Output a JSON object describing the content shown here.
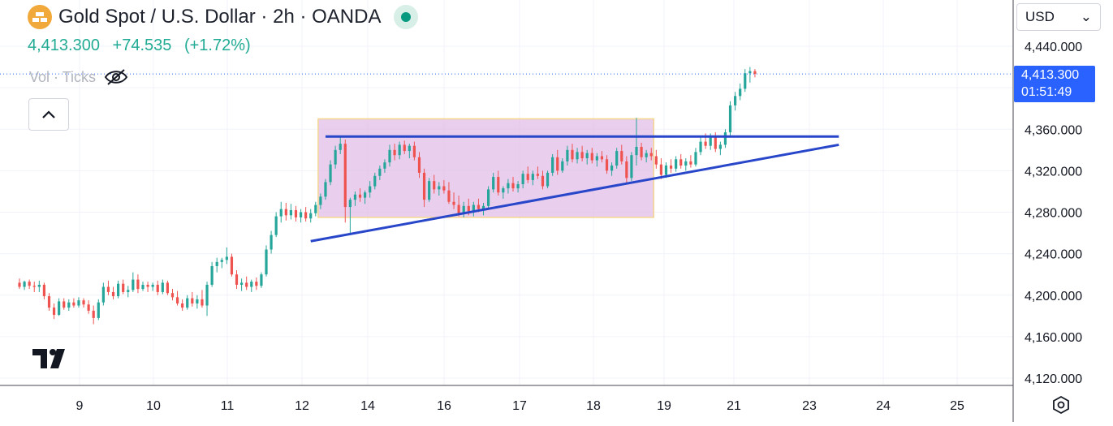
{
  "header": {
    "title": "Gold Spot / U.S. Dollar · 2h · OANDA",
    "last_price": "4,413.300",
    "change": "+74.535",
    "change_pct": "(+1.72%)",
    "volume_label": "Vol · Ticks"
  },
  "toolbar": {
    "currency": "USD",
    "currency_chevron": "⌄"
  },
  "price_label": {
    "price": "4,413.300",
    "countdown": "01:51:49"
  },
  "icons": {
    "symbol": "gold-bars-icon",
    "status": "market-open-dot-icon",
    "visibility": "eye-off-icon",
    "collapse": "chevron-up-icon",
    "logo": "tradingview-logo-icon",
    "settings": "settings-icon"
  },
  "colors": {
    "up": "#26a69a",
    "down": "#ef5350",
    "rectangle_fill": "#e1bee7",
    "trendline": "#2846c9",
    "price_line": "#2962ff"
  },
  "chart_data": {
    "type": "candlestick",
    "x_ticks": [
      "9",
      "10",
      "11",
      "12",
      "14",
      "16",
      "17",
      "18",
      "19",
      "21",
      "23",
      "24",
      "25"
    ],
    "y_ticks": [
      4440,
      4400,
      4360,
      4320,
      4280,
      4240,
      4200,
      4160,
      4120
    ],
    "y_tick_labels": [
      "4,440.000",
      "",
      "4,360.000",
      "4,320.000",
      "4,280.000",
      "4,240.000",
      "4,200.000",
      "4,160.000",
      "4,120.000"
    ],
    "ylim": [
      4113,
      4456
    ],
    "last_price": 4413.3,
    "candles": [
      [
        4212,
        4216,
        4206,
        4208
      ],
      [
        4208,
        4214,
        4205,
        4213
      ],
      [
        4213,
        4215,
        4206,
        4209
      ],
      [
        4209,
        4213,
        4203,
        4208
      ],
      [
        4208,
        4214,
        4203,
        4210
      ],
      [
        4210,
        4212,
        4196,
        4199
      ],
      [
        4199,
        4202,
        4185,
        4188
      ],
      [
        4188,
        4192,
        4177,
        4181
      ],
      [
        4181,
        4197,
        4180,
        4194
      ],
      [
        4194,
        4197,
        4186,
        4188
      ],
      [
        4188,
        4196,
        4185,
        4193
      ],
      [
        4193,
        4197,
        4188,
        4190
      ],
      [
        4190,
        4198,
        4188,
        4195
      ],
      [
        4195,
        4197,
        4188,
        4191
      ],
      [
        4191,
        4195,
        4182,
        4185
      ],
      [
        4185,
        4190,
        4172,
        4178
      ],
      [
        4178,
        4196,
        4176,
        4193
      ],
      [
        4193,
        4212,
        4190,
        4208
      ],
      [
        4208,
        4214,
        4200,
        4203
      ],
      [
        4203,
        4208,
        4196,
        4199
      ],
      [
        4199,
        4214,
        4197,
        4211
      ],
      [
        4211,
        4215,
        4201,
        4203
      ],
      [
        4203,
        4209,
        4198,
        4205
      ],
      [
        4205,
        4222,
        4203,
        4215
      ],
      [
        4215,
        4220,
        4202,
        4206
      ],
      [
        4206,
        4213,
        4204,
        4210
      ],
      [
        4210,
        4213,
        4203,
        4208
      ],
      [
        4208,
        4212,
        4204,
        4210
      ],
      [
        4210,
        4214,
        4200,
        4203
      ],
      [
        4203,
        4215,
        4201,
        4212
      ],
      [
        4212,
        4214,
        4200,
        4202
      ],
      [
        4202,
        4206,
        4195,
        4198
      ],
      [
        4198,
        4204,
        4190,
        4192
      ],
      [
        4192,
        4196,
        4185,
        4188
      ],
      [
        4188,
        4200,
        4186,
        4197
      ],
      [
        4197,
        4203,
        4189,
        4192
      ],
      [
        4192,
        4200,
        4187,
        4196
      ],
      [
        4196,
        4205,
        4188,
        4190
      ],
      [
        4190,
        4213,
        4180,
        4210
      ],
      [
        4210,
        4232,
        4208,
        4228
      ],
      [
        4228,
        4236,
        4222,
        4232
      ],
      [
        4232,
        4236,
        4226,
        4234
      ],
      [
        4234,
        4246,
        4230,
        4237
      ],
      [
        4237,
        4240,
        4218,
        4220
      ],
      [
        4220,
        4224,
        4206,
        4210
      ],
      [
        4210,
        4216,
        4204,
        4212
      ],
      [
        4212,
        4218,
        4205,
        4208
      ],
      [
        4208,
        4215,
        4203,
        4213
      ],
      [
        4213,
        4217,
        4205,
        4209
      ],
      [
        4209,
        4222,
        4207,
        4220
      ],
      [
        4220,
        4248,
        4218,
        4244
      ],
      [
        4244,
        4262,
        4240,
        4258
      ],
      [
        4258,
        4280,
        4256,
        4276
      ],
      [
        4276,
        4290,
        4270,
        4283
      ],
      [
        4283,
        4289,
        4272,
        4277
      ],
      [
        4277,
        4288,
        4273,
        4282
      ],
      [
        4282,
        4286,
        4271,
        4275
      ],
      [
        4275,
        4283,
        4270,
        4280
      ],
      [
        4280,
        4285,
        4271,
        4274
      ],
      [
        4274,
        4283,
        4270,
        4279
      ],
      [
        4279,
        4290,
        4276,
        4287
      ],
      [
        4287,
        4298,
        4283,
        4295
      ],
      [
        4295,
        4312,
        4292,
        4309
      ],
      [
        4309,
        4330,
        4306,
        4326
      ],
      [
        4326,
        4344,
        4322,
        4340
      ],
      [
        4340,
        4352,
        4336,
        4346
      ],
      [
        4346,
        4350,
        4270,
        4285
      ],
      [
        4285,
        4294,
        4260,
        4292
      ],
      [
        4292,
        4300,
        4286,
        4297
      ],
      [
        4297,
        4303,
        4290,
        4294
      ],
      [
        4294,
        4301,
        4288,
        4299
      ],
      [
        4299,
        4310,
        4294,
        4305
      ],
      [
        4305,
        4318,
        4302,
        4315
      ],
      [
        4315,
        4325,
        4311,
        4322
      ],
      [
        4322,
        4331,
        4318,
        4328
      ],
      [
        4328,
        4345,
        4324,
        4340
      ],
      [
        4340,
        4346,
        4330,
        4335
      ],
      [
        4335,
        4348,
        4331,
        4345
      ],
      [
        4345,
        4349,
        4336,
        4339
      ],
      [
        4339,
        4346,
        4332,
        4344
      ],
      [
        4344,
        4348,
        4330,
        4333
      ],
      [
        4333,
        4338,
        4313,
        4318
      ],
      [
        4318,
        4322,
        4285,
        4292
      ],
      [
        4292,
        4313,
        4290,
        4310
      ],
      [
        4310,
        4316,
        4298,
        4302
      ],
      [
        4302,
        4309,
        4296,
        4305
      ],
      [
        4305,
        4311,
        4298,
        4301
      ],
      [
        4301,
        4309,
        4288,
        4290
      ],
      [
        4290,
        4299,
        4283,
        4287
      ],
      [
        4287,
        4296,
        4276,
        4279
      ],
      [
        4279,
        4290,
        4275,
        4286
      ],
      [
        4286,
        4293,
        4277,
        4281
      ],
      [
        4281,
        4290,
        4276,
        4287
      ],
      [
        4287,
        4293,
        4280,
        4283
      ],
      [
        4283,
        4289,
        4277,
        4286
      ],
      [
        4286,
        4305,
        4284,
        4302
      ],
      [
        4302,
        4318,
        4299,
        4314
      ],
      [
        4314,
        4320,
        4296,
        4299
      ],
      [
        4299,
        4305,
        4293,
        4303
      ],
      [
        4303,
        4312,
        4298,
        4308
      ],
      [
        4308,
        4314,
        4300,
        4303
      ],
      [
        4303,
        4310,
        4299,
        4307
      ],
      [
        4307,
        4320,
        4303,
        4317
      ],
      [
        4317,
        4324,
        4308,
        4311
      ],
      [
        4311,
        4320,
        4306,
        4317
      ],
      [
        4317,
        4324,
        4312,
        4315
      ],
      [
        4315,
        4320,
        4302,
        4305
      ],
      [
        4305,
        4320,
        4303,
        4318
      ],
      [
        4318,
        4336,
        4315,
        4333
      ],
      [
        4333,
        4340,
        4316,
        4320
      ],
      [
        4320,
        4332,
        4318,
        4329
      ],
      [
        4329,
        4344,
        4325,
        4340
      ],
      [
        4340,
        4346,
        4328,
        4331
      ],
      [
        4331,
        4342,
        4327,
        4338
      ],
      [
        4338,
        4344,
        4329,
        4332
      ],
      [
        4332,
        4340,
        4326,
        4337
      ],
      [
        4337,
        4342,
        4327,
        4330
      ],
      [
        4330,
        4337,
        4324,
        4334
      ],
      [
        4334,
        4339,
        4328,
        4331
      ],
      [
        4331,
        4335,
        4317,
        4320
      ],
      [
        4320,
        4328,
        4315,
        4325
      ],
      [
        4325,
        4342,
        4322,
        4339
      ],
      [
        4339,
        4345,
        4326,
        4329
      ],
      [
        4329,
        4334,
        4308,
        4313
      ],
      [
        4313,
        4338,
        4310,
        4335
      ],
      [
        4335,
        4371,
        4325,
        4343
      ],
      [
        4343,
        4347,
        4330,
        4333
      ],
      [
        4333,
        4340,
        4328,
        4337
      ],
      [
        4337,
        4342,
        4330,
        4334
      ],
      [
        4334,
        4340,
        4322,
        4326
      ],
      [
        4326,
        4332,
        4312,
        4316
      ],
      [
        4316,
        4328,
        4313,
        4325
      ],
      [
        4325,
        4331,
        4318,
        4322
      ],
      [
        4322,
        4334,
        4319,
        4331
      ],
      [
        4331,
        4336,
        4322,
        4325
      ],
      [
        4325,
        4332,
        4320,
        4329
      ],
      [
        4329,
        4335,
        4323,
        4326
      ],
      [
        4326,
        4342,
        4324,
        4338
      ],
      [
        4338,
        4352,
        4335,
        4348
      ],
      [
        4348,
        4356,
        4341,
        4344
      ],
      [
        4344,
        4356,
        4340,
        4352
      ],
      [
        4352,
        4357,
        4338,
        4341
      ],
      [
        4341,
        4348,
        4335,
        4345
      ],
      [
        4345,
        4360,
        4342,
        4357
      ],
      [
        4357,
        4387,
        4354,
        4383
      ],
      [
        4383,
        4396,
        4378,
        4392
      ],
      [
        4392,
        4404,
        4388,
        4399
      ],
      [
        4399,
        4418,
        4396,
        4414
      ],
      [
        4414,
        4420,
        4405,
        4416
      ],
      [
        4416,
        4418,
        4410,
        4413.3
      ]
    ],
    "drawings": [
      {
        "kind": "rectangle",
        "start_bar": 61,
        "end_bar": 128,
        "top": 4370,
        "bottom": 4275
      },
      {
        "kind": "line",
        "from_bar": 62,
        "from_price": 4353,
        "to_bar": 166,
        "to_price": 4353
      },
      {
        "kind": "line",
        "from_bar": 59,
        "from_price": 4252,
        "to_bar": 166,
        "to_price": 4345
      }
    ]
  }
}
